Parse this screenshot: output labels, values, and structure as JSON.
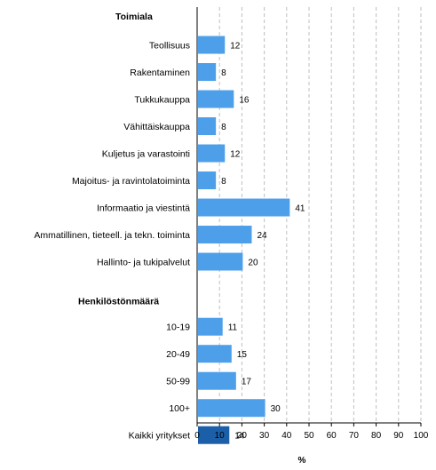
{
  "chart_data": {
    "type": "bar",
    "orientation": "horizontal",
    "groups": [
      {
        "label": "Toimiala",
        "categories": [
          "Teollisuus",
          "Rakentaminen",
          "Tukkukauppa",
          "Vähittäiskauppa",
          "Kuljetus ja varastointi",
          "Majoitus- ja ravintolatoiminta",
          "Informaatio ja viestintä",
          "Ammatillinen, tieteell. ja tekn. toiminta",
          "Hallinto- ja tukipalvelut"
        ],
        "values": [
          12,
          8,
          16,
          8,
          12,
          8,
          41,
          24,
          20
        ]
      },
      {
        "label": "Henkilöstönmäärä",
        "categories": [
          "10-19",
          "20-49",
          "50-99",
          "100+"
        ],
        "values": [
          11,
          15,
          17,
          30
        ]
      },
      {
        "label": "",
        "categories": [
          "Kaikki yritykset"
        ],
        "values": [
          14
        ]
      }
    ],
    "xlabel": "%",
    "xlim": [
      0,
      100
    ],
    "xticks": [
      "0",
      "10",
      "20",
      "30",
      "40",
      "50",
      "60",
      "70",
      "80",
      "90",
      "100"
    ],
    "grid": "vertical dashed",
    "colors": {
      "bar": "#4e9fea",
      "highlight": "#1b5fa8",
      "grid": "#bfbfbf",
      "axis": "#000000"
    }
  }
}
